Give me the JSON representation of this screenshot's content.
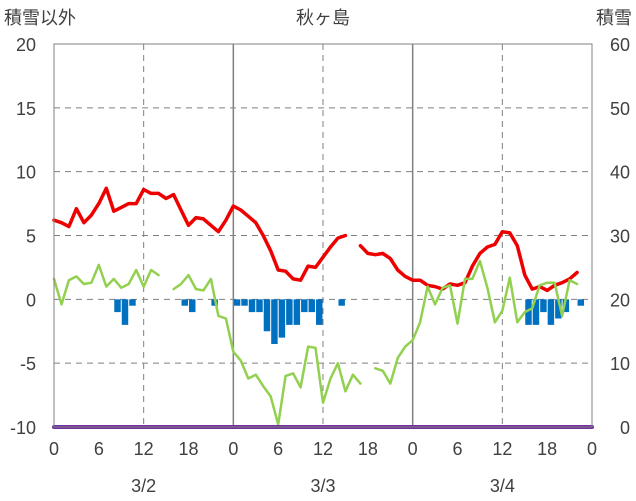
{
  "chart_data": {
    "type": "line",
    "title": "秋ヶ島",
    "y_left_label": "積雪以外",
    "y_right_label": "積雪",
    "ylim_left": [
      -10,
      20
    ],
    "ylim_right": [
      0,
      60
    ],
    "yticks_left": [
      "20",
      "15",
      "10",
      "5",
      "0",
      "-5",
      "-10"
    ],
    "yticks_right": [
      "60",
      "50",
      "40",
      "30",
      "20",
      "10",
      "0"
    ],
    "hour_ticks": [
      "0",
      "6",
      "12",
      "18",
      "0",
      "6",
      "12",
      "18",
      "0",
      "6",
      "12",
      "18",
      "0"
    ],
    "date_labels": [
      "3/2",
      "3/3",
      "3/4"
    ],
    "x_range_hours": [
      0,
      72
    ],
    "grid": "solid lines at day boundaries, dashed at noon and every 5 units",
    "colors": {
      "temperature": "#ee0000",
      "secondary_line": "#92d050",
      "precip_bar": "#0070c0",
      "snow_depth": "#7030a0",
      "grid": "#808080"
    },
    "series": [
      {
        "name": "",
        "color": "#ee0000",
        "points": [
          [
            0,
            6.2
          ],
          [
            1,
            6.0
          ],
          [
            2,
            5.7
          ],
          [
            3,
            7.1
          ],
          [
            4,
            6.0
          ],
          [
            5,
            6.6
          ],
          [
            6,
            7.5
          ],
          [
            7,
            8.7
          ],
          [
            8,
            6.9
          ],
          [
            9,
            7.2
          ],
          [
            10,
            7.5
          ],
          [
            11,
            7.5
          ],
          [
            12,
            8.6
          ],
          [
            13,
            8.3
          ],
          [
            14,
            8.3
          ],
          [
            15,
            7.9
          ],
          [
            16,
            8.2
          ],
          [
            17,
            7.0
          ],
          [
            18,
            5.8
          ],
          [
            19,
            6.4
          ],
          [
            20,
            6.3
          ],
          [
            21,
            5.8
          ],
          [
            22,
            5.3
          ],
          [
            23,
            6.2
          ],
          [
            24,
            7.3
          ],
          [
            25,
            7.0
          ],
          [
            26,
            6.5
          ],
          [
            27,
            6.0
          ],
          [
            28,
            5.0
          ],
          [
            29,
            3.8
          ],
          [
            30,
            2.3
          ],
          [
            31,
            2.2
          ],
          [
            32,
            1.6
          ],
          [
            33,
            1.5
          ],
          [
            34,
            2.6
          ],
          [
            35,
            2.5
          ],
          [
            36,
            3.3
          ],
          [
            37,
            4.1
          ],
          [
            38,
            4.8
          ],
          [
            39,
            5.0
          ],
          [
            40,
            null
          ],
          [
            41,
            4.2
          ],
          [
            42,
            3.6
          ],
          [
            43,
            3.5
          ],
          [
            44,
            3.6
          ],
          [
            45,
            3.2
          ],
          [
            46,
            2.3
          ],
          [
            47,
            1.8
          ],
          [
            48,
            1.5
          ],
          [
            49,
            1.5
          ],
          [
            50,
            1.1
          ],
          [
            51,
            1.0
          ],
          [
            52,
            0.8
          ],
          [
            53,
            1.2
          ],
          [
            54,
            1.1
          ],
          [
            55,
            1.3
          ],
          [
            56,
            2.6
          ],
          [
            57,
            3.6
          ],
          [
            58,
            4.1
          ],
          [
            59,
            4.3
          ],
          [
            60,
            5.3
          ],
          [
            61,
            5.2
          ],
          [
            62,
            4.2
          ],
          [
            63,
            1.9
          ],
          [
            64,
            0.8
          ],
          [
            65,
            1.0
          ],
          [
            66,
            0.7
          ],
          [
            67,
            1.1
          ],
          [
            68,
            1.3
          ],
          [
            69,
            1.6
          ],
          [
            70,
            2.1
          ]
        ]
      },
      {
        "name": "",
        "color": "#92d050",
        "points": [
          [
            0,
            1.6
          ],
          [
            1,
            -0.4
          ],
          [
            2,
            1.5
          ],
          [
            3,
            1.8
          ],
          [
            4,
            1.2
          ],
          [
            5,
            1.3
          ],
          [
            6,
            2.7
          ],
          [
            7,
            1.0
          ],
          [
            8,
            1.6
          ],
          [
            9,
            0.9
          ],
          [
            10,
            1.2
          ],
          [
            11,
            2.3
          ],
          [
            12,
            1.0
          ],
          [
            13,
            2.3
          ],
          [
            14,
            1.9
          ],
          [
            15,
            null
          ],
          [
            16,
            0.8
          ],
          [
            17,
            1.2
          ],
          [
            18,
            1.9
          ],
          [
            19,
            0.8
          ],
          [
            20,
            0.7
          ],
          [
            21,
            1.6
          ],
          [
            22,
            -1.3
          ],
          [
            23,
            -1.5
          ],
          [
            24,
            -4.1
          ],
          [
            25,
            -4.8
          ],
          [
            26,
            -6.2
          ],
          [
            27,
            -5.9
          ],
          [
            28,
            -6.8
          ],
          [
            29,
            -7.6
          ],
          [
            30,
            -9.8
          ],
          [
            31,
            -6.0
          ],
          [
            32,
            -5.8
          ],
          [
            33,
            -6.9
          ],
          [
            34,
            -3.7
          ],
          [
            35,
            -3.8
          ],
          [
            36,
            -8.1
          ],
          [
            37,
            -6.2
          ],
          [
            38,
            -5.0
          ],
          [
            39,
            -7.2
          ],
          [
            40,
            -5.9
          ],
          [
            41,
            -6.6
          ],
          [
            42,
            null
          ],
          [
            43,
            -5.4
          ],
          [
            44,
            -5.6
          ],
          [
            45,
            -6.6
          ],
          [
            46,
            -4.6
          ],
          [
            47,
            -3.7
          ],
          [
            48,
            -3.2
          ],
          [
            49,
            -1.8
          ],
          [
            50,
            1.0
          ],
          [
            51,
            -0.4
          ],
          [
            52,
            0.9
          ],
          [
            53,
            1.1
          ],
          [
            54,
            -1.9
          ],
          [
            55,
            1.6
          ],
          [
            56,
            1.6
          ],
          [
            57,
            3.0
          ],
          [
            58,
            0.9
          ],
          [
            59,
            -1.8
          ],
          [
            60,
            -0.9
          ],
          [
            61,
            1.7
          ],
          [
            62,
            -1.8
          ],
          [
            63,
            -1.0
          ],
          [
            64,
            -0.7
          ],
          [
            65,
            1.1
          ],
          [
            66,
            1.3
          ],
          [
            67,
            1.3
          ],
          [
            68,
            -1.3
          ],
          [
            69,
            1.5
          ],
          [
            70,
            1.2
          ]
        ]
      },
      {
        "name": "",
        "color": "#0070c0",
        "type": "bar",
        "values": [
          0,
          0,
          0,
          0,
          0,
          0,
          0,
          0,
          -1.0,
          -2.0,
          -0.5,
          0,
          0,
          0,
          0,
          0,
          0,
          -0.5,
          -1.0,
          0,
          0,
          -0.5,
          0,
          0,
          -0.5,
          -0.5,
          -1.0,
          -1.0,
          -2.5,
          -3.5,
          -3.0,
          -2.0,
          -2.0,
          -1.0,
          -1.0,
          -2.0,
          0,
          0,
          -0.5,
          0,
          0,
          0,
          0,
          0,
          0,
          0,
          0,
          0,
          0,
          0,
          0,
          0,
          0,
          0,
          0,
          0,
          0,
          0,
          0,
          0,
          0,
          0,
          0,
          -2.0,
          -2.0,
          -1.0,
          -2.0,
          -1.5,
          -1.0,
          0,
          -0.5,
          0
        ]
      },
      {
        "name": "",
        "color": "#7030a0",
        "axis": "right",
        "points": [
          [
            0,
            0
          ],
          [
            72,
            0
          ]
        ]
      }
    ]
  }
}
